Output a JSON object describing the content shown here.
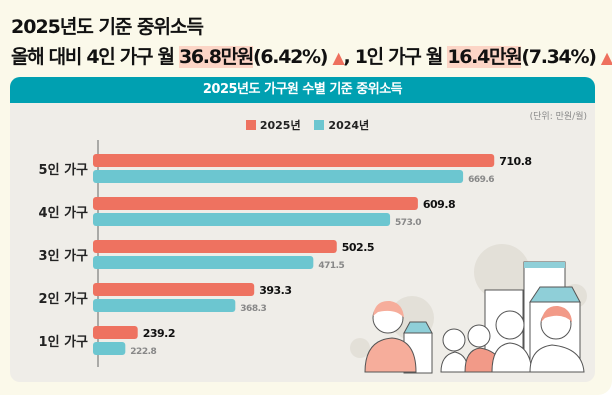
{
  "headline": {
    "title": "2025년도 기준 중위소득",
    "line_a": "올해 대비 4인 가구 월 ",
    "hl_a": "36.8만원",
    "pct_a": "(6.42%)",
    "sep": ", 1인 가구 월 ",
    "hl_b": "16.4만원",
    "pct_b": "(7.34%)",
    "arrow": "▲"
  },
  "card": {
    "title": "2025년도 가구원 수별 기준 중위소득",
    "unit": "(단위: 만원/월)"
  },
  "colors": {
    "y2025": "#ee7260",
    "y2024": "#6cc6d0",
    "header": "#00a0b1"
  },
  "chart_data": {
    "type": "bar",
    "orientation": "horizontal",
    "categories": [
      "5인 가구",
      "4인 가구",
      "3인 가구",
      "2인 가구",
      "1인 가구"
    ],
    "series": [
      {
        "name": "2025년",
        "values": [
          710.8,
          609.8,
          502.5,
          393.3,
          239.2
        ]
      },
      {
        "name": "2024년",
        "values": [
          669.6,
          573.0,
          471.5,
          368.3,
          222.8
        ]
      }
    ],
    "legend": "top",
    "grid": false,
    "data_labels": true
  }
}
